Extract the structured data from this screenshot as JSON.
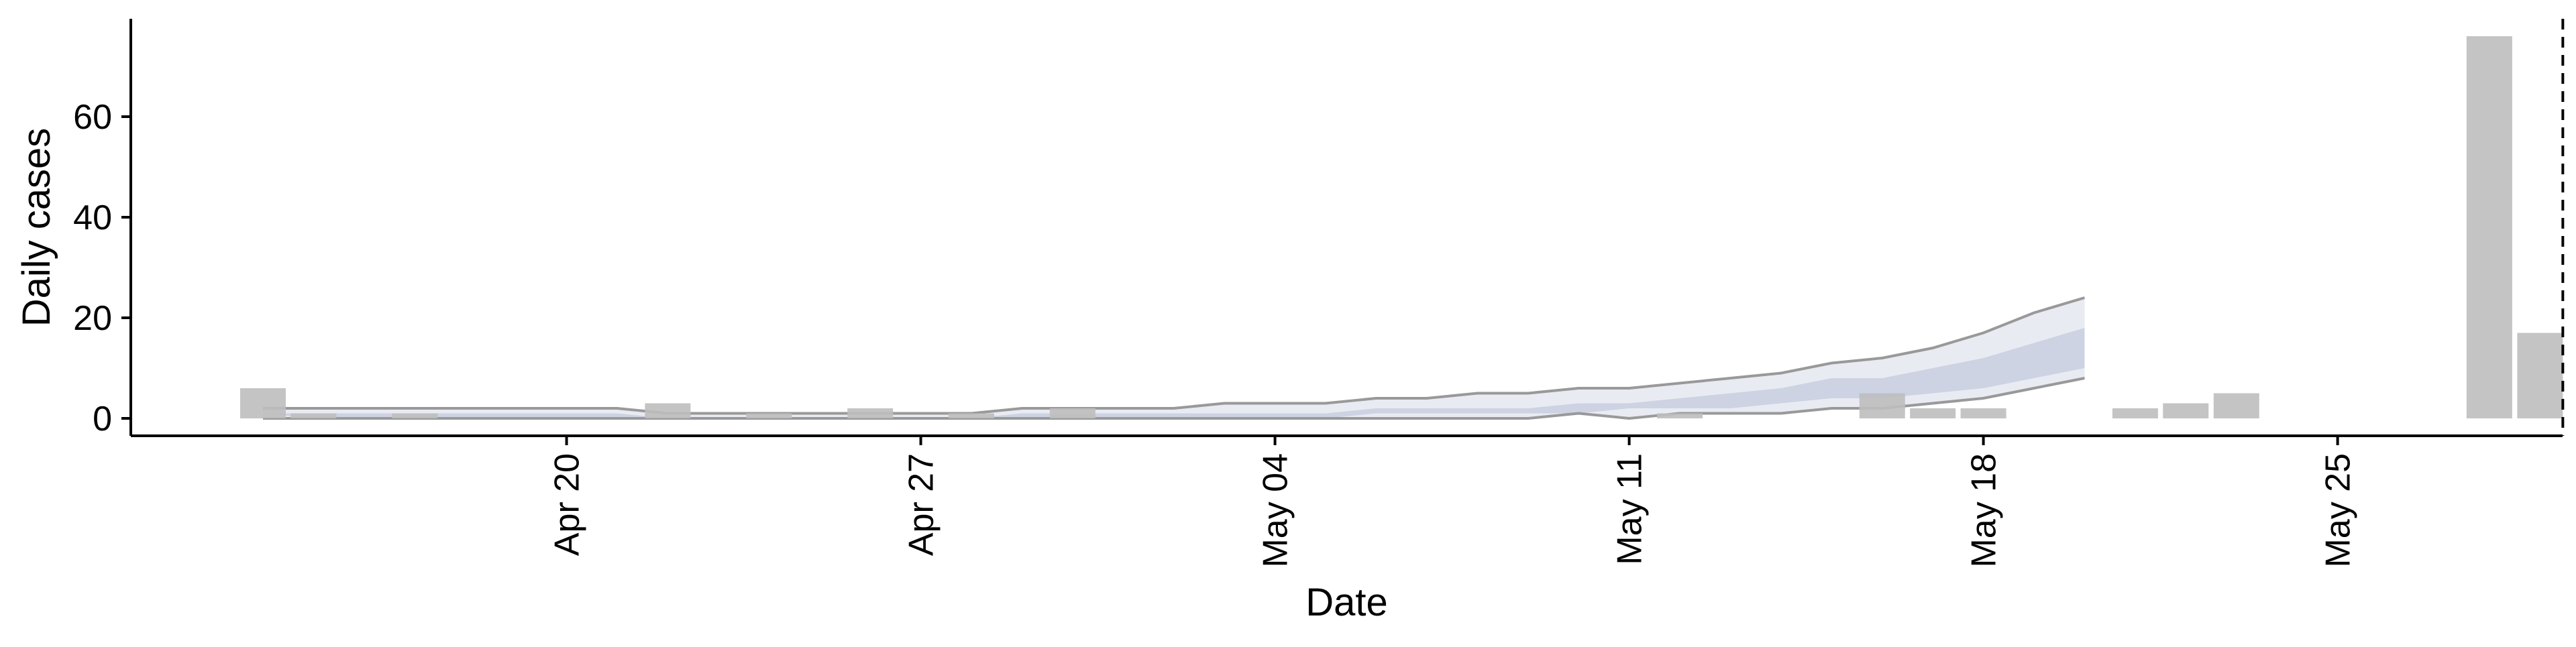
{
  "chart_data": {
    "type": "bar",
    "xlabel": "Date",
    "ylabel": "Daily cases",
    "x_axis_type": "date",
    "xlim": [
      "2020-04-14",
      "2020-06-01"
    ],
    "ylim": [
      -3.5,
      80
    ],
    "y_ticks": [
      0,
      20,
      40,
      60
    ],
    "x_ticks": [
      {
        "date": "2020-04-20",
        "label": "Apr 20"
      },
      {
        "date": "2020-04-27",
        "label": "Apr 27"
      },
      {
        "date": "2020-05-04",
        "label": "May 04"
      },
      {
        "date": "2020-05-11",
        "label": "May 11"
      },
      {
        "date": "2020-05-18",
        "label": "May 18"
      },
      {
        "date": "2020-05-25",
        "label": "May 25"
      }
    ],
    "grid": false,
    "legend": "none",
    "vertical_line": {
      "date": "2020-05-29",
      "style": "dashed"
    },
    "colors": {
      "bars": "#bebebe",
      "outer_band": "#e9ebf2",
      "inner_band": "#cdd3e3",
      "band_edge": "#999999",
      "axis": "#000000"
    },
    "bars": [
      {
        "date": "2020-04-14",
        "value": 6
      },
      {
        "date": "2020-04-15",
        "value": 1
      },
      {
        "date": "2020-04-17",
        "value": 1
      },
      {
        "date": "2020-04-22",
        "value": 3
      },
      {
        "date": "2020-04-24",
        "value": 1
      },
      {
        "date": "2020-04-26",
        "value": 2
      },
      {
        "date": "2020-04-28",
        "value": 1
      },
      {
        "date": "2020-04-30",
        "value": 2
      },
      {
        "date": "2020-05-12",
        "value": 1
      },
      {
        "date": "2020-05-16",
        "value": 5
      },
      {
        "date": "2020-05-17",
        "value": 2
      },
      {
        "date": "2020-05-18",
        "value": 2
      },
      {
        "date": "2020-05-21",
        "value": 2
      },
      {
        "date": "2020-05-22",
        "value": 3
      },
      {
        "date": "2020-05-23",
        "value": 5
      },
      {
        "date": "2020-05-28",
        "value": 76
      },
      {
        "date": "2020-05-29",
        "value": 17
      }
    ],
    "bands": [
      {
        "date": "2020-04-14",
        "lower90": 0,
        "lower50": 1,
        "upper50": 1,
        "upper90": 2
      },
      {
        "date": "2020-04-15",
        "lower90": 0,
        "lower50": 0,
        "upper50": 1,
        "upper90": 2
      },
      {
        "date": "2020-04-16",
        "lower90": 0,
        "lower50": 0,
        "upper50": 1,
        "upper90": 2
      },
      {
        "date": "2020-04-17",
        "lower90": 0,
        "lower50": 0,
        "upper50": 1,
        "upper90": 2
      },
      {
        "date": "2020-04-18",
        "lower90": 0,
        "lower50": 0,
        "upper50": 1,
        "upper90": 2
      },
      {
        "date": "2020-04-19",
        "lower90": 0,
        "lower50": 0,
        "upper50": 1,
        "upper90": 2
      },
      {
        "date": "2020-04-20",
        "lower90": 0,
        "lower50": 0,
        "upper50": 1,
        "upper90": 2
      },
      {
        "date": "2020-04-21",
        "lower90": 0,
        "lower50": 0,
        "upper50": 1,
        "upper90": 2
      },
      {
        "date": "2020-04-22",
        "lower90": 0,
        "lower50": 0,
        "upper50": 0,
        "upper90": 1
      },
      {
        "date": "2020-04-23",
        "lower90": 0,
        "lower50": 0,
        "upper50": 0,
        "upper90": 1
      },
      {
        "date": "2020-04-24",
        "lower90": 0,
        "lower50": 0,
        "upper50": 0,
        "upper90": 1
      },
      {
        "date": "2020-04-25",
        "lower90": 0,
        "lower50": 0,
        "upper50": 0,
        "upper90": 1
      },
      {
        "date": "2020-04-26",
        "lower90": 0,
        "lower50": 0,
        "upper50": 0,
        "upper90": 1
      },
      {
        "date": "2020-04-27",
        "lower90": 0,
        "lower50": 0,
        "upper50": 0,
        "upper90": 1
      },
      {
        "date": "2020-04-28",
        "lower90": 0,
        "lower50": 0,
        "upper50": 0,
        "upper90": 1
      },
      {
        "date": "2020-04-29",
        "lower90": 0,
        "lower50": 0,
        "upper50": 1,
        "upper90": 2
      },
      {
        "date": "2020-04-30",
        "lower90": 0,
        "lower50": 0,
        "upper50": 1,
        "upper90": 2
      },
      {
        "date": "2020-05-01",
        "lower90": 0,
        "lower50": 0,
        "upper50": 1,
        "upper90": 2
      },
      {
        "date": "2020-05-02",
        "lower90": 0,
        "lower50": 0,
        "upper50": 1,
        "upper90": 2
      },
      {
        "date": "2020-05-03",
        "lower90": 0,
        "lower50": 0,
        "upper50": 1,
        "upper90": 3
      },
      {
        "date": "2020-05-04",
        "lower90": 0,
        "lower50": 0,
        "upper50": 1,
        "upper90": 3
      },
      {
        "date": "2020-05-05",
        "lower90": 0,
        "lower50": 0,
        "upper50": 1,
        "upper90": 3
      },
      {
        "date": "2020-05-06",
        "lower90": 0,
        "lower50": 1,
        "upper50": 2,
        "upper90": 4
      },
      {
        "date": "2020-05-07",
        "lower90": 0,
        "lower50": 1,
        "upper50": 2,
        "upper90": 4
      },
      {
        "date": "2020-05-08",
        "lower90": 0,
        "lower50": 1,
        "upper50": 2,
        "upper90": 5
      },
      {
        "date": "2020-05-09",
        "lower90": 0,
        "lower50": 1,
        "upper50": 2,
        "upper90": 5
      },
      {
        "date": "2020-05-10",
        "lower90": 1,
        "lower50": 1,
        "upper50": 3,
        "upper90": 6
      },
      {
        "date": "2020-05-11",
        "lower90": 0,
        "lower50": 2,
        "upper50": 3,
        "upper90": 6
      },
      {
        "date": "2020-05-12",
        "lower90": 1,
        "lower50": 2,
        "upper50": 4,
        "upper90": 7
      },
      {
        "date": "2020-05-13",
        "lower90": 1,
        "lower50": 2,
        "upper50": 5,
        "upper90": 8
      },
      {
        "date": "2020-05-14",
        "lower90": 1,
        "lower50": 3,
        "upper50": 6,
        "upper90": 9
      },
      {
        "date": "2020-05-15",
        "lower90": 2,
        "lower50": 4,
        "upper50": 8,
        "upper90": 11
      },
      {
        "date": "2020-05-16",
        "lower90": 2,
        "lower50": 4,
        "upper50": 8,
        "upper90": 12
      },
      {
        "date": "2020-05-17",
        "lower90": 3,
        "lower50": 5,
        "upper50": 10,
        "upper90": 14
      },
      {
        "date": "2020-05-18",
        "lower90": 4,
        "lower50": 6,
        "upper50": 12,
        "upper90": 17
      },
      {
        "date": "2020-05-19",
        "lower90": 6,
        "lower50": 8,
        "upper50": 15,
        "upper90": 21
      },
      {
        "date": "2020-05-20",
        "lower90": 8,
        "lower50": 10,
        "upper50": 18,
        "upper90": 24
      }
    ]
  }
}
